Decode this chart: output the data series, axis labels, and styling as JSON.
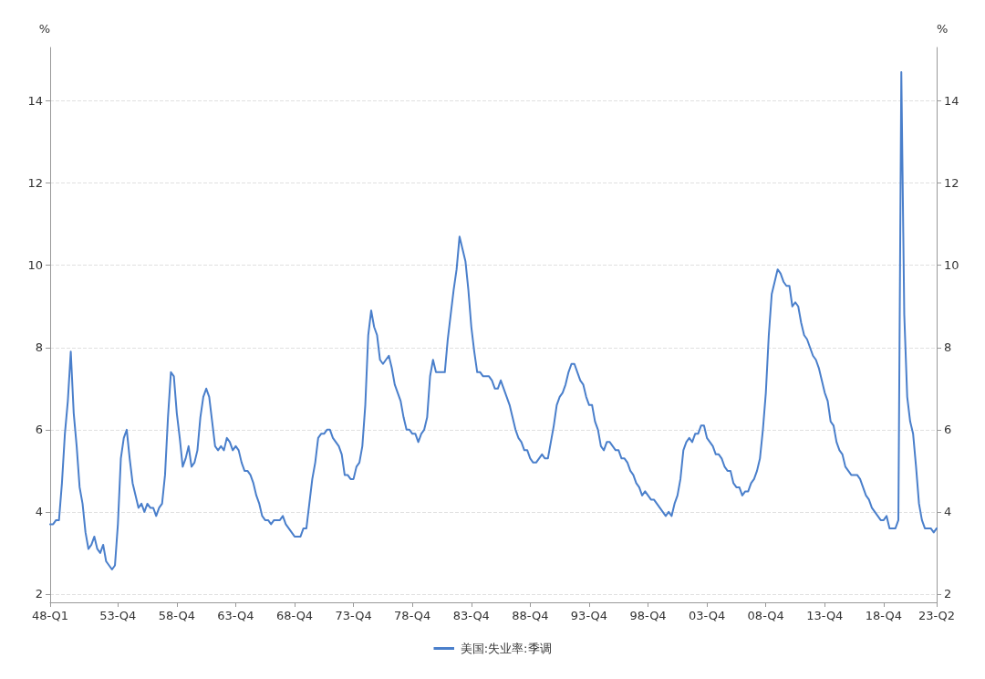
{
  "chart_data": {
    "type": "line",
    "ylabel": "%",
    "y2label": "%",
    "categories": [
      "48-Q1",
      null,
      null,
      null,
      null,
      null,
      null,
      null,
      null,
      null,
      null,
      null,
      null,
      null,
      null,
      null,
      null,
      null,
      null,
      null,
      null,
      null,
      null,
      "53-Q4",
      null,
      null,
      null,
      null,
      null,
      null,
      null,
      null,
      null,
      null,
      null,
      null,
      null,
      null,
      null,
      null,
      null,
      null,
      null,
      "58-Q4",
      null,
      null,
      null,
      null,
      null,
      null,
      null,
      null,
      null,
      null,
      null,
      null,
      null,
      null,
      null,
      null,
      null,
      null,
      null,
      "63-Q4",
      null,
      null,
      null,
      null,
      null,
      null,
      null,
      null,
      null,
      null,
      null,
      null,
      null,
      null,
      null,
      null,
      null,
      null,
      null,
      "68-Q4",
      null,
      null,
      null,
      null,
      null,
      null,
      null,
      null,
      null,
      null,
      null,
      null,
      null,
      null,
      null,
      null,
      null,
      null,
      null,
      "73-Q4",
      null,
      null,
      null,
      null,
      null,
      null,
      null,
      null,
      null,
      null,
      null,
      null,
      null,
      null,
      null,
      null,
      null,
      null,
      null,
      "78-Q4",
      null,
      null,
      null,
      null,
      null,
      null,
      null,
      null,
      null,
      null,
      null,
      null,
      null,
      null,
      null,
      null,
      null,
      null,
      null,
      "83-Q4",
      null,
      null,
      null,
      null,
      null,
      null,
      null,
      null,
      null,
      null,
      null,
      null,
      null,
      null,
      null,
      null,
      null,
      null,
      null,
      "88-Q4",
      null,
      null,
      null,
      null,
      null,
      null,
      null,
      null,
      null,
      null,
      null,
      null,
      null,
      null,
      null,
      null,
      null,
      null,
      null,
      "93-Q4",
      null,
      null,
      null,
      null,
      null,
      null,
      null,
      null,
      null,
      null,
      null,
      null,
      null,
      null,
      null,
      null,
      null,
      null,
      null,
      "98-Q4",
      null,
      null,
      null,
      null,
      null,
      null,
      null,
      null,
      null,
      null,
      null,
      null,
      null,
      null,
      null,
      null,
      null,
      null,
      null,
      "03-Q4",
      null,
      null,
      null,
      null,
      null,
      null,
      null,
      null,
      null,
      null,
      null,
      null,
      null,
      null,
      null,
      null,
      null,
      null,
      null,
      "08-Q4",
      null,
      null,
      null,
      null,
      null,
      null,
      null,
      null,
      null,
      null,
      null,
      null,
      null,
      null,
      null,
      null,
      null,
      null,
      null,
      "13-Q4",
      null,
      null,
      null,
      null,
      null,
      null,
      null,
      null,
      null,
      null,
      null,
      null,
      null,
      null,
      null,
      null,
      null,
      null,
      null,
      "18-Q4",
      null,
      null,
      null,
      null,
      null,
      null,
      null,
      null,
      null,
      null,
      null,
      null,
      null,
      null,
      null,
      null,
      null,
      "23-Q2"
    ],
    "series": [
      {
        "name": "美国:失业率:季调",
        "color": "#4a7fcb",
        "values": [
          3.7,
          3.7,
          3.8,
          3.8,
          4.7,
          5.9,
          6.7,
          7.9,
          6.4,
          5.6,
          4.6,
          4.2,
          3.5,
          3.1,
          3.2,
          3.4,
          3.1,
          3.0,
          3.2,
          2.8,
          2.7,
          2.6,
          2.7,
          3.7,
          5.3,
          5.8,
          6.0,
          5.3,
          4.7,
          4.4,
          4.1,
          4.2,
          4.0,
          4.2,
          4.1,
          4.1,
          3.9,
          4.1,
          4.2,
          4.9,
          6.3,
          7.4,
          7.3,
          6.4,
          5.8,
          5.1,
          5.3,
          5.6,
          5.1,
          5.2,
          5.5,
          6.3,
          6.8,
          7.0,
          6.8,
          6.2,
          5.6,
          5.5,
          5.6,
          5.5,
          5.8,
          5.7,
          5.5,
          5.6,
          5.5,
          5.2,
          5.0,
          5.0,
          4.9,
          4.7,
          4.4,
          4.2,
          3.9,
          3.8,
          3.8,
          3.7,
          3.8,
          3.8,
          3.8,
          3.9,
          3.7,
          3.6,
          3.5,
          3.4,
          3.4,
          3.4,
          3.6,
          3.6,
          4.2,
          4.8,
          5.2,
          5.8,
          5.9,
          5.9,
          6.0,
          6.0,
          5.8,
          5.7,
          5.6,
          5.4,
          4.9,
          4.9,
          4.8,
          4.8,
          5.1,
          5.2,
          5.6,
          6.6,
          8.3,
          8.9,
          8.5,
          8.3,
          7.7,
          7.6,
          7.7,
          7.8,
          7.5,
          7.1,
          6.9,
          6.7,
          6.3,
          6.0,
          6.0,
          5.9,
          5.9,
          5.7,
          5.9,
          6.0,
          6.3,
          7.3,
          7.7,
          7.4,
          7.4,
          7.4,
          7.4,
          8.2,
          8.8,
          9.4,
          9.9,
          10.7,
          10.4,
          10.1,
          9.4,
          8.5,
          7.9,
          7.4,
          7.4,
          7.3,
          7.3,
          7.3,
          7.2,
          7.0,
          7.0,
          7.2,
          7.0,
          6.8,
          6.6,
          6.3,
          6.0,
          5.8,
          5.7,
          5.5,
          5.5,
          5.3,
          5.2,
          5.2,
          5.3,
          5.4,
          5.3,
          5.3,
          5.7,
          6.1,
          6.6,
          6.8,
          6.9,
          7.1,
          7.4,
          7.6,
          7.6,
          7.4,
          7.2,
          7.1,
          6.8,
          6.6,
          6.6,
          6.2,
          6.0,
          5.6,
          5.5,
          5.7,
          5.7,
          5.6,
          5.5,
          5.5,
          5.3,
          5.3,
          5.2,
          5.0,
          4.9,
          4.7,
          4.6,
          4.4,
          4.5,
          4.4,
          4.3,
          4.3,
          4.2,
          4.1,
          4.0,
          3.9,
          4.0,
          3.9,
          4.2,
          4.4,
          4.8,
          5.5,
          5.7,
          5.8,
          5.7,
          5.9,
          5.9,
          6.1,
          6.1,
          5.8,
          5.7,
          5.6,
          5.4,
          5.4,
          5.3,
          5.1,
          5.0,
          5.0,
          4.7,
          4.6,
          4.6,
          4.4,
          4.5,
          4.5,
          4.7,
          4.8,
          5.0,
          5.3,
          6.0,
          6.9,
          8.3,
          9.3,
          9.6,
          9.9,
          9.8,
          9.6,
          9.5,
          9.5,
          9.0,
          9.1,
          9.0,
          8.6,
          8.3,
          8.2,
          8.0,
          7.8,
          7.7,
          7.5,
          7.2,
          6.9,
          6.7,
          6.2,
          6.1,
          5.7,
          5.5,
          5.4,
          5.1,
          5.0,
          4.9,
          4.9,
          4.9,
          4.8,
          4.6,
          4.4,
          4.3,
          4.1,
          4.0,
          3.9,
          3.8,
          3.8,
          3.9,
          3.6,
          3.6,
          3.6,
          3.8,
          14.7,
          8.8,
          6.8,
          6.2,
          5.9,
          5.1,
          4.2,
          3.8,
          3.6,
          3.6,
          3.6,
          3.5,
          3.6
        ]
      }
    ],
    "ylim": [
      1.8,
      15.3
    ],
    "yticks": [
      2,
      4,
      6,
      8,
      10,
      12,
      14
    ],
    "y2lim": [
      1.8,
      15.3
    ],
    "y2ticks": [
      2,
      4,
      6,
      8,
      10,
      12,
      14
    ],
    "grid": "y",
    "legend": "bottom",
    "marker": "none",
    "line_style": "solid"
  }
}
